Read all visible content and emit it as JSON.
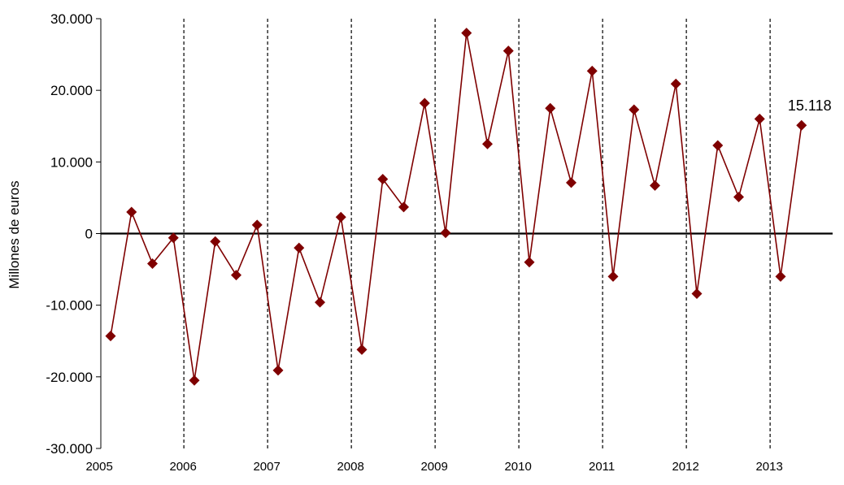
{
  "chart_data": {
    "type": "line",
    "ylabel": "Millones de euros",
    "ylim": [
      -30000,
      30000
    ],
    "ytick_values": [
      -30000,
      -20000,
      -10000,
      0,
      10000,
      20000,
      30000
    ],
    "ytick_labels": [
      "-30.000",
      "-20.000",
      "-10.000",
      "0",
      "10.000",
      "20.000",
      "30.000"
    ],
    "year_labels": [
      "2005",
      "2006",
      "2007",
      "2008",
      "2009",
      "2010",
      "2011",
      "2012",
      "2013"
    ],
    "year_separators": true,
    "grid": false,
    "series": [
      {
        "values": [
          -14300,
          3000,
          -4200,
          -600,
          -20500,
          -1100,
          -5800,
          1200,
          -19100,
          -2000,
          -9600,
          2300,
          -16200,
          7600,
          3700,
          18200,
          100,
          28000,
          12500,
          25500,
          -4000,
          17500,
          7100,
          22700,
          -6000,
          17300,
          6700,
          20900,
          -8400,
          12300,
          5100,
          16000,
          -6000,
          15118
        ]
      }
    ],
    "annotation": {
      "text": "15.118",
      "point_index": 33
    },
    "colors": {
      "series": "#7f0000",
      "axis": "#000000",
      "separator": "#000000"
    }
  }
}
